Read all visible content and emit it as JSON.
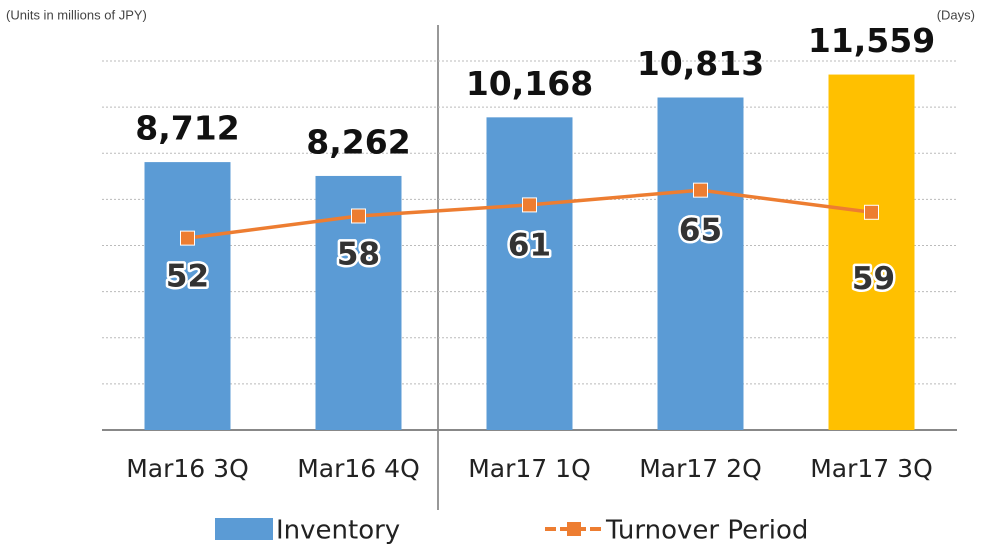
{
  "chart_data": {
    "type": "bar-line",
    "y_label": "(Units in millions of JPY)",
    "y2_label": "(Days)",
    "categories": [
      "Mar16 3Q",
      "Mar16 4Q",
      "Mar17 1Q",
      "Mar17 2Q",
      "Mar17 3Q"
    ],
    "ylim": [
      0,
      12000
    ],
    "yticks": [
      0,
      1500,
      3000,
      4500,
      6000,
      7500,
      9000,
      10500,
      12000
    ],
    "y2lim": [
      0,
      100
    ],
    "grid": true,
    "series": [
      {
        "name": "Inventory",
        "type": "bar",
        "color": "#5b9bd5",
        "colors": [
          "#5b9bd5",
          "#5b9bd5",
          "#5b9bd5",
          "#5b9bd5",
          "#ffc000"
        ],
        "values": [
          8712,
          8262,
          10168,
          10813,
          11559
        ],
        "value_labels": [
          "8,712",
          "8,262",
          "10,168",
          "10,813",
          "11,559"
        ]
      },
      {
        "name": "Turnover Period",
        "type": "line",
        "axis": "y2",
        "color": "#ed7d31",
        "values": [
          52,
          58,
          61,
          65,
          59
        ]
      }
    ]
  }
}
